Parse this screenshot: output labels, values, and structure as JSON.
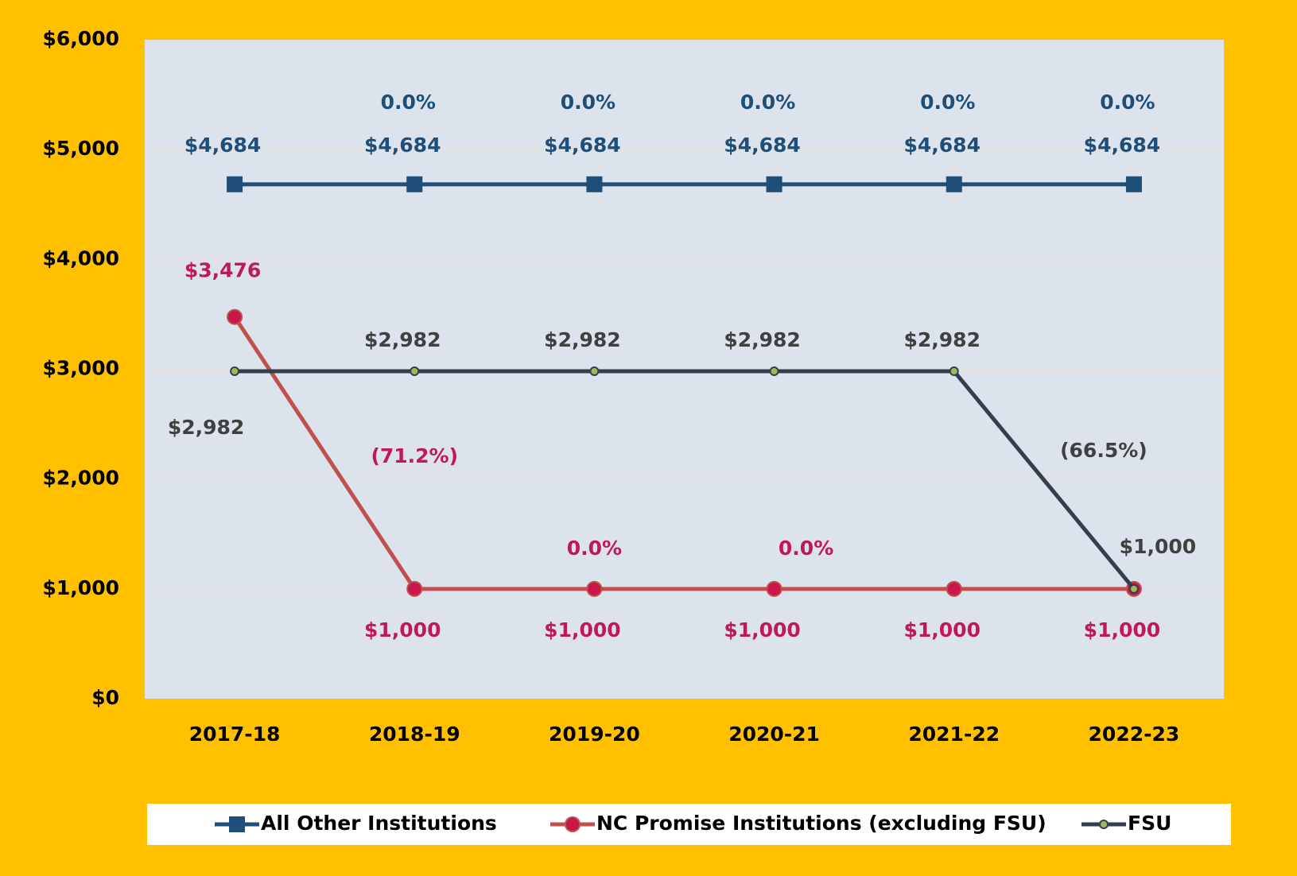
{
  "chart_data": {
    "type": "line",
    "categories": [
      "2017-18",
      "2018-19",
      "2019-20",
      "2020-21",
      "2021-22",
      "2022-23"
    ],
    "ylim": [
      0,
      6000
    ],
    "yticks": [
      {
        "value": 0,
        "label": "$0"
      },
      {
        "value": 1000,
        "label": "$1,000"
      },
      {
        "value": 2000,
        "label": "$2,000"
      },
      {
        "value": 3000,
        "label": "$3,000"
      },
      {
        "value": 4000,
        "label": "$4,000"
      },
      {
        "value": 5000,
        "label": "$5,000"
      },
      {
        "value": 6000,
        "label": "$6,000"
      }
    ],
    "grid": true,
    "legend": "bottom",
    "series": [
      {
        "name": "All Other Institutions",
        "color": "#1f4e79",
        "marker": "square",
        "values": [
          4684,
          4684,
          4684,
          4684,
          4684,
          4684
        ],
        "value_labels": [
          "$4,684",
          "$4,684",
          "$4,684",
          "$4,684",
          "$4,684",
          "$4,684"
        ],
        "change_labels": [
          null,
          "0.0%",
          "0.0%",
          "0.0%",
          "0.0%",
          "0.0%"
        ]
      },
      {
        "name": "NC Promise Institutions (excluding FSU)",
        "color": "#c0504d",
        "marker": "circle",
        "values": [
          3476,
          1000,
          1000,
          1000,
          1000,
          1000
        ],
        "value_labels": [
          "$3,476",
          "$1,000",
          "$1,000",
          "$1,000",
          "$1,000",
          "$1,000"
        ],
        "change_labels": [
          null,
          "(71.2%)",
          "0.0%",
          "0.0%",
          null,
          null
        ]
      },
      {
        "name": "FSU",
        "color": "#333f4f",
        "marker": "dot",
        "values": [
          2982,
          2982,
          2982,
          2982,
          2982,
          1000
        ],
        "value_labels": [
          "$2,982",
          "$2,982",
          "$2,982",
          "$2,982",
          "$2,982",
          "$1,000"
        ],
        "change_labels": [
          null,
          null,
          null,
          null,
          null,
          "(66.5%)"
        ]
      }
    ]
  }
}
